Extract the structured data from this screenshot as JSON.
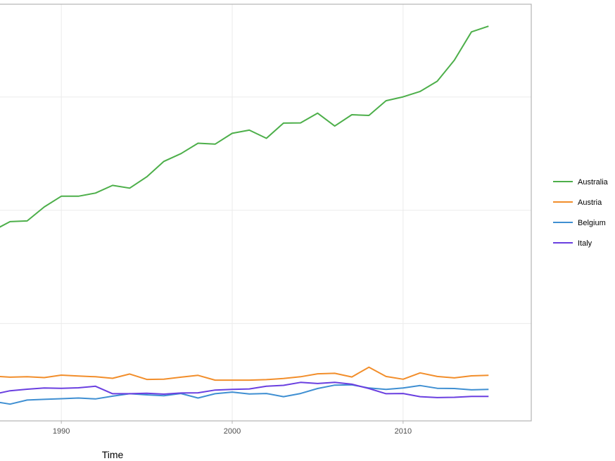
{
  "chart_data": {
    "type": "line",
    "xlabel": "Time",
    "ylabel": "",
    "xlim": [
      1986,
      2017.5
    ],
    "ylim": [
      0,
      1840
    ],
    "x_ticks": [
      1990,
      2000,
      2010
    ],
    "x_tick_labels": [
      "1990",
      "2000",
      "2010"
    ],
    "y_gridlines": [
      0,
      430,
      930,
      1430
    ],
    "grid": true,
    "legend_position": "right",
    "x": [
      1986,
      1987,
      1988,
      1989,
      1990,
      1991,
      1992,
      1993,
      1994,
      1995,
      1996,
      1997,
      1998,
      1999,
      2000,
      2001,
      2002,
      2003,
      2004,
      2005,
      2006,
      2007,
      2008,
      2009,
      2010,
      2011,
      2012,
      2013,
      2014,
      2015
    ],
    "series": [
      {
        "name": "Australia",
        "color": "#4daf4a",
        "values": [
          840,
          880,
          883,
          945,
          992,
          992,
          1006,
          1040,
          1028,
          1078,
          1146,
          1180,
          1226,
          1222,
          1270,
          1284,
          1248,
          1315,
          1316,
          1359,
          1302,
          1352,
          1349,
          1414,
          1431,
          1455,
          1500,
          1593,
          1718,
          1743
        ]
      },
      {
        "name": "Austria",
        "color": "#f28e2b",
        "values": [
          198,
          193,
          195,
          191,
          202,
          198,
          195,
          188,
          207,
          183,
          184,
          193,
          201,
          180,
          180,
          180,
          182,
          187,
          195,
          208,
          210,
          194,
          237,
          196,
          184,
          212,
          196,
          190,
          199,
          201
        ]
      },
      {
        "name": "Belgium",
        "color": "#3f8fd2",
        "values": [
          86,
          74,
          92,
          95,
          98,
          101,
          97,
          109,
          120,
          115,
          111,
          121,
          101,
          120,
          127,
          119,
          121,
          107,
          121,
          143,
          158,
          159,
          145,
          139,
          145,
          156,
          144,
          143,
          137,
          139
        ]
      },
      {
        "name": "Italy",
        "color": "#6a3fe0",
        "values": [
          117,
          133,
          140,
          145,
          144,
          146,
          153,
          120,
          120,
          122,
          118,
          123,
          124,
          136,
          139,
          141,
          153,
          157,
          170,
          165,
          170,
          162,
          143,
          120,
          121,
          107,
          103,
          104,
          108,
          108
        ]
      }
    ]
  }
}
